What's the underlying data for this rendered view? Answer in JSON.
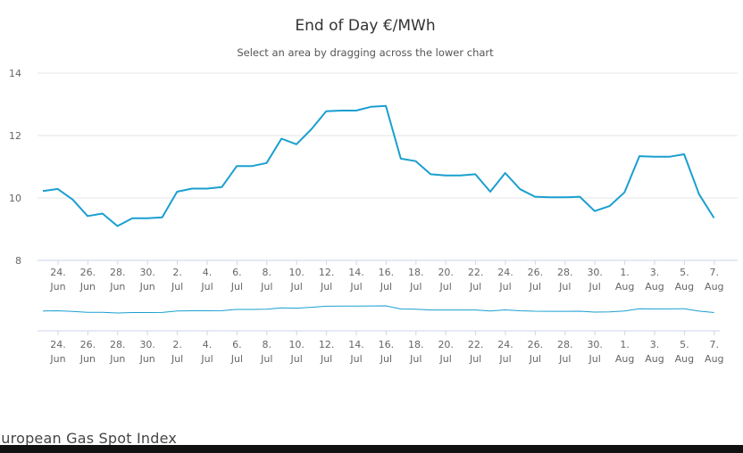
{
  "footer_text": "European Gas Spot Index",
  "colors": {
    "line": "#1a9fd0",
    "grid": "#e6e6e6",
    "axis": "#ccd6eb"
  },
  "chart_data": {
    "type": "line",
    "title": "End of Day €/MWh",
    "subtitle": "Select an area by dragging across the lower chart",
    "ylim": [
      8,
      14
    ],
    "yticks": [
      8,
      10,
      12,
      14
    ],
    "grid": true,
    "x_tick_labels": [
      {
        "day": "24.",
        "month": "Jun"
      },
      {
        "day": "26.",
        "month": "Jun"
      },
      {
        "day": "28.",
        "month": "Jun"
      },
      {
        "day": "30.",
        "month": "Jun"
      },
      {
        "day": "2.",
        "month": "Jul"
      },
      {
        "day": "4.",
        "month": "Jul"
      },
      {
        "day": "6.",
        "month": "Jul"
      },
      {
        "day": "8.",
        "month": "Jul"
      },
      {
        "day": "10.",
        "month": "Jul"
      },
      {
        "day": "12.",
        "month": "Jul"
      },
      {
        "day": "14.",
        "month": "Jul"
      },
      {
        "day": "16.",
        "month": "Jul"
      },
      {
        "day": "18.",
        "month": "Jul"
      },
      {
        "day": "20.",
        "month": "Jul"
      },
      {
        "day": "22.",
        "month": "Jul"
      },
      {
        "day": "24.",
        "month": "Jul"
      },
      {
        "day": "26.",
        "month": "Jul"
      },
      {
        "day": "28.",
        "month": "Jul"
      },
      {
        "day": "30.",
        "month": "Jul"
      },
      {
        "day": "1.",
        "month": "Aug"
      },
      {
        "day": "3.",
        "month": "Aug"
      },
      {
        "day": "5.",
        "month": "Aug"
      },
      {
        "day": "7.",
        "month": "Aug"
      }
    ],
    "series": [
      {
        "x": [
          "23 Jun",
          "24 Jun",
          "25 Jun",
          "26 Jun",
          "27 Jun",
          "28 Jun",
          "29 Jun",
          "30 Jun",
          "1 Jul",
          "2 Jul",
          "3 Jul",
          "4 Jul",
          "5 Jul",
          "6 Jul",
          "7 Jul",
          "8 Jul",
          "9 Jul",
          "10 Jul",
          "11 Jul",
          "12 Jul",
          "13 Jul",
          "14 Jul",
          "15 Jul",
          "16 Jul",
          "17 Jul",
          "18 Jul",
          "19 Jul",
          "20 Jul",
          "21 Jul",
          "22 Jul",
          "23 Jul",
          "24 Jul",
          "25 Jul",
          "26 Jul",
          "27 Jul",
          "28 Jul",
          "29 Jul",
          "30 Jul",
          "31 Jul",
          "1 Aug",
          "2 Aug",
          "3 Aug",
          "4 Aug",
          "5 Aug",
          "6 Aug",
          "7 Aug"
        ],
        "values": [
          10.22,
          10.29,
          9.95,
          9.42,
          9.5,
          9.1,
          9.35,
          9.35,
          9.38,
          10.2,
          10.3,
          10.3,
          10.35,
          11.02,
          11.02,
          11.12,
          11.9,
          11.72,
          12.2,
          12.78,
          12.8,
          12.8,
          12.92,
          12.95,
          11.26,
          11.18,
          10.76,
          10.72,
          10.72,
          10.76,
          10.2,
          10.8,
          10.28,
          10.04,
          10.02,
          10.02,
          10.04,
          9.58,
          9.74,
          10.18,
          11.34,
          11.32,
          11.32,
          11.4,
          10.12,
          9.36
        ]
      }
    ]
  }
}
